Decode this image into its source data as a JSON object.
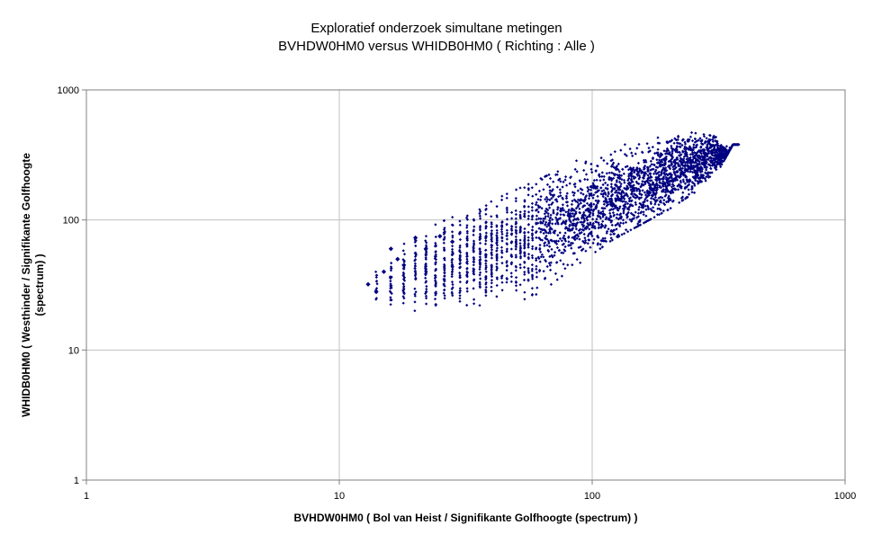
{
  "chart_data": {
    "type": "scatter",
    "title": "Exploratief onderzoek simultane metingen",
    "subtitle": "BVHDW0HM0 versus WHIDB0HM0 ( Richting : Alle )",
    "xlabel": "BVHDW0HM0 ( Bol van Heist / Signifikante Golfhoogte (spectrum) )",
    "ylabel_line1": "WHIDB0HM0 ( Westhinder / Signifikante Golfhoogte",
    "ylabel_line2": "(spectrum) )",
    "x_scale": "log",
    "y_scale": "log",
    "xlim": [
      1,
      1000
    ],
    "ylim": [
      1,
      1000
    ],
    "x_ticks": [
      "1",
      "10",
      "100",
      "1000"
    ],
    "y_ticks": [
      "1",
      "10",
      "100",
      "1000"
    ],
    "grid": true,
    "legend": "none",
    "marker": "diamond",
    "point_color": "#000080",
    "grid_color": "#c0c0c0",
    "point_cloud": {
      "x_range": [
        13,
        380
      ],
      "y_range": [
        20,
        480
      ],
      "trend_points": [
        {
          "x": 13,
          "y": 30
        },
        {
          "x": 20,
          "y": 40
        },
        {
          "x": 30,
          "y": 50
        },
        {
          "x": 50,
          "y": 70
        },
        {
          "x": 100,
          "y": 120
        },
        {
          "x": 200,
          "y": 220
        },
        {
          "x": 300,
          "y": 320
        }
      ],
      "upper_envelope": [
        {
          "x": 13,
          "y": 35
        },
        {
          "x": 20,
          "y": 80
        },
        {
          "x": 40,
          "y": 140
        },
        {
          "x": 70,
          "y": 230
        },
        {
          "x": 100,
          "y": 330
        },
        {
          "x": 150,
          "y": 400
        },
        {
          "x": 230,
          "y": 480
        },
        {
          "x": 360,
          "y": 420
        }
      ],
      "lower_envelope": [
        {
          "x": 13,
          "y": 22
        },
        {
          "x": 20,
          "y": 20
        },
        {
          "x": 40,
          "y": 21
        },
        {
          "x": 60,
          "y": 26
        },
        {
          "x": 80,
          "y": 40
        },
        {
          "x": 120,
          "y": 70
        },
        {
          "x": 200,
          "y": 120
        },
        {
          "x": 300,
          "y": 200
        },
        {
          "x": 360,
          "y": 380
        }
      ]
    }
  }
}
